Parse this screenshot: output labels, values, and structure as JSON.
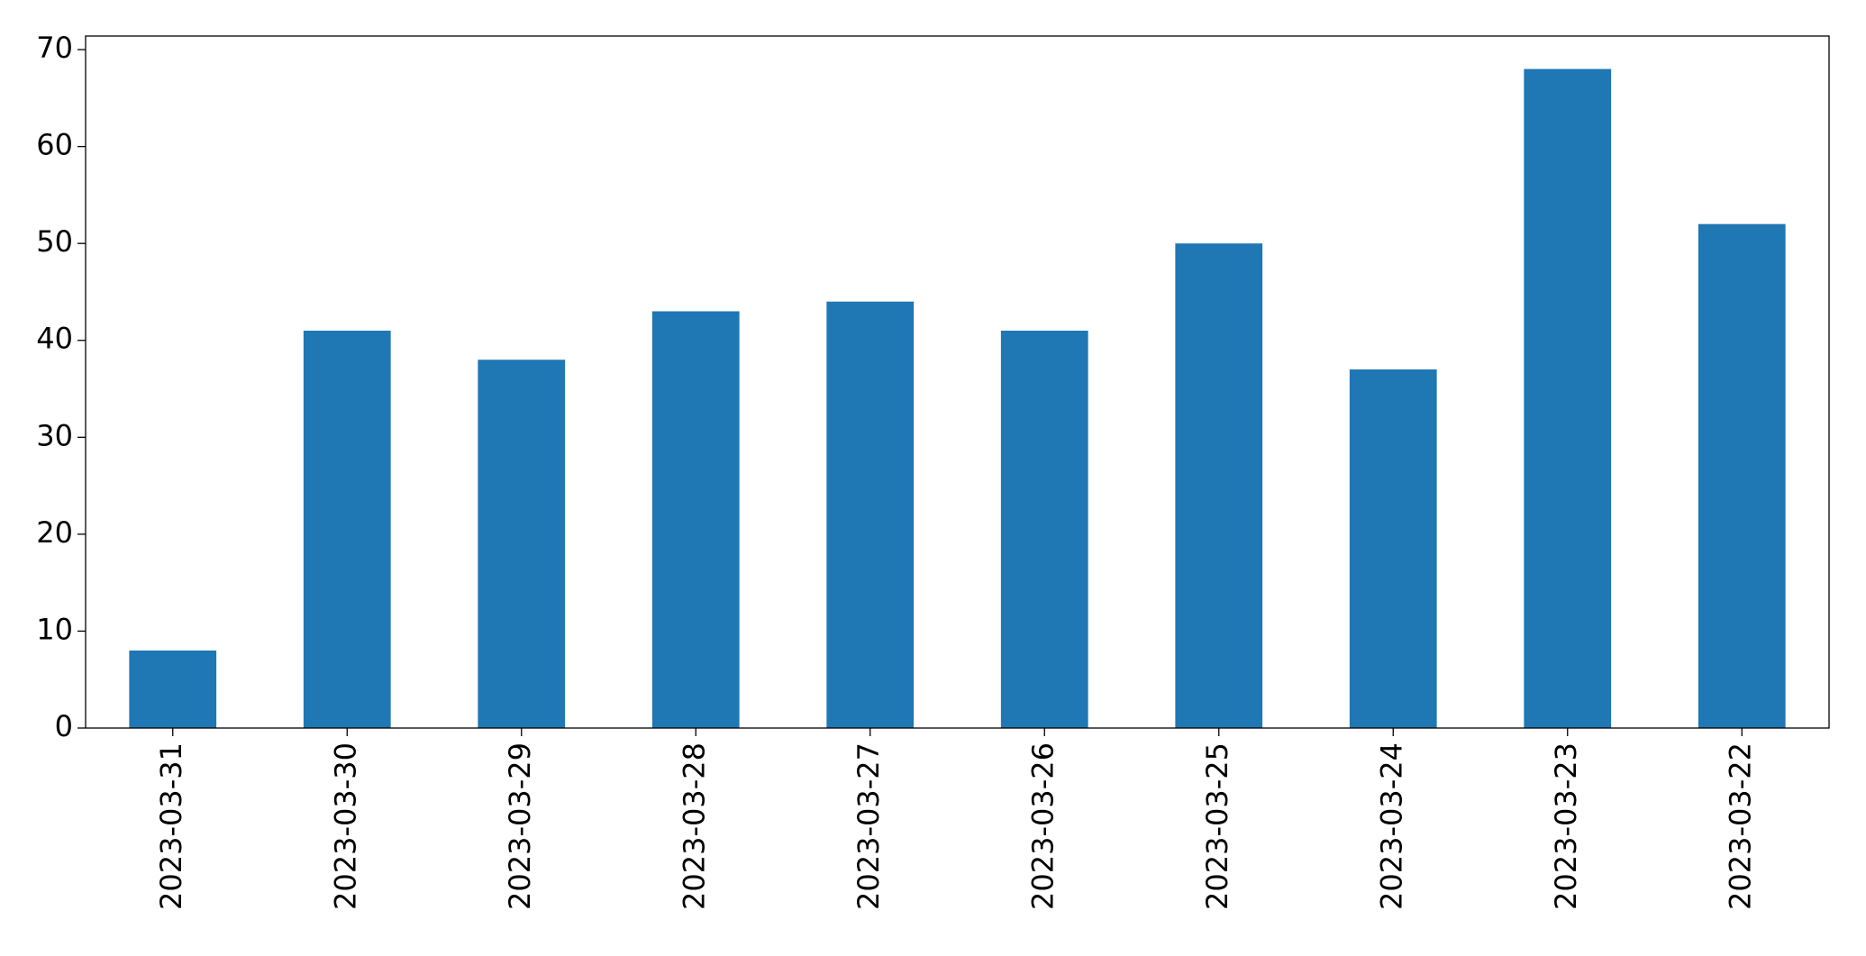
{
  "chart_data": {
    "type": "bar",
    "categories": [
      "2023-03-31",
      "2023-03-30",
      "2023-03-29",
      "2023-03-28",
      "2023-03-27",
      "2023-03-26",
      "2023-03-25",
      "2023-03-24",
      "2023-03-23",
      "2023-03-22"
    ],
    "values": [
      8,
      41,
      38,
      43,
      44,
      41,
      50,
      37,
      68,
      52
    ],
    "color": "#1f77b4",
    "ylim": [
      0,
      71.4
    ],
    "yticks": [
      0,
      10,
      20,
      30,
      40,
      50,
      60,
      70
    ],
    "grid": false
  }
}
